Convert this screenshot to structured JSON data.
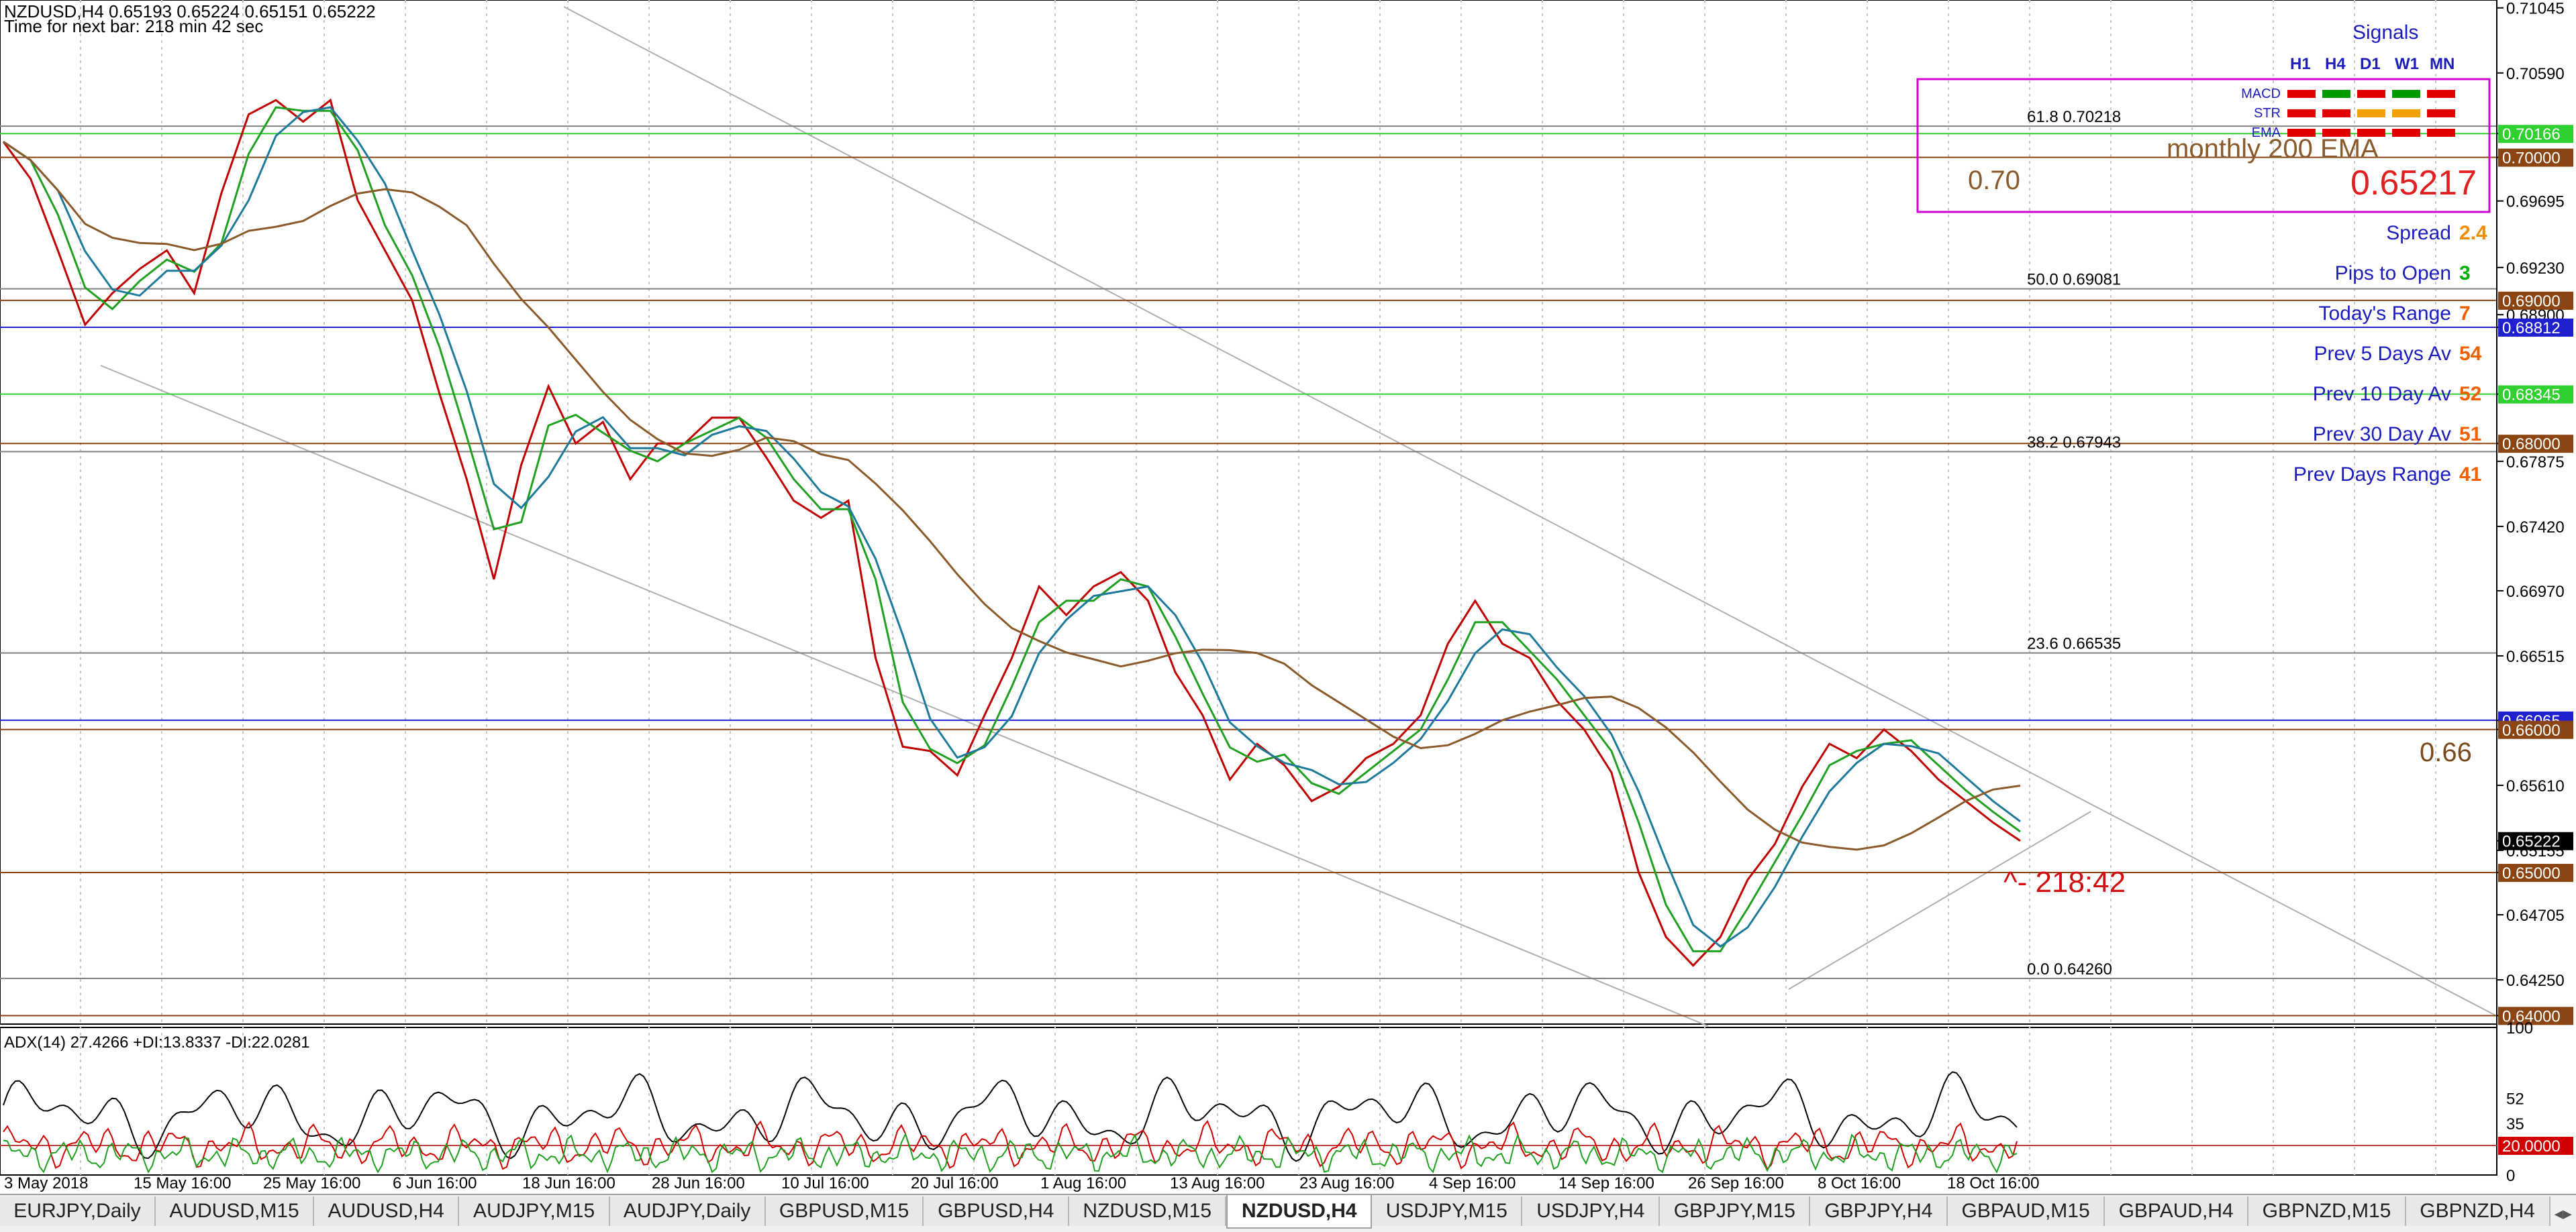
{
  "header": {
    "symbol_line": "NZDUSD,H4  0.65193 0.65224 0.65151 0.65222",
    "timer_line": "Time for next bar: 218 min 42 sec"
  },
  "signals": {
    "title": "Signals",
    "timeframes": [
      "H1",
      "H4",
      "D1",
      "W1",
      "MN"
    ],
    "rows": [
      {
        "label": "MACD",
        "colors": [
          "#e00000",
          "#009a00",
          "#e00000",
          "#009a00",
          "#e00000"
        ]
      },
      {
        "label": "STR",
        "colors": [
          "#e00000",
          "#e00000",
          "#f0a000",
          "#f0a000",
          "#e00000"
        ]
      },
      {
        "label": "EMA",
        "colors": [
          "#e00000",
          "#e00000",
          "#e00000",
          "#e00000",
          "#e00000"
        ]
      }
    ],
    "monthly_ema_label": "monthly 200 EMA",
    "level_label": "0.70",
    "current_price": "0.65217"
  },
  "info": [
    {
      "label": "Spread",
      "value": "2.4",
      "color": "#f08c00"
    },
    {
      "label": "Pips to Open",
      "value": "3",
      "color": "#00b000"
    },
    {
      "label": "Today's Range",
      "value": "7",
      "color": "#f06000"
    },
    {
      "label": "Prev 5 Days Av",
      "value": "54",
      "color": "#f06000"
    },
    {
      "label": "Prev 10 Day Av",
      "value": "52",
      "color": "#f06000"
    },
    {
      "label": "Prev 30 Day Av",
      "value": "51",
      "color": "#f06000"
    },
    {
      "label": "Prev Days Range",
      "value": "41",
      "color": "#f06000"
    }
  ],
  "chart_data": {
    "type": "line",
    "title": "",
    "price_axis": {
      "range": [
        0.6395,
        0.711
      ],
      "ticks": [
        "0.71045",
        "0.70590",
        "0.70166",
        "0.70000",
        "0.69695",
        "0.69230",
        "0.68900",
        "0.68812",
        "0.68345",
        "0.68000",
        "0.67875",
        "0.67420",
        "0.66970",
        "0.66515",
        "0.66065",
        "0.66000",
        "0.65610",
        "0.65222",
        "0.65155",
        "0.65000",
        "0.64705",
        "0.64250",
        "0.64000"
      ]
    },
    "time_labels": [
      "3 May 2018",
      "15 May 16:00",
      "25 May 16:00",
      "6 Jun 16:00",
      "18 Jun 16:00",
      "28 Jun 16:00",
      "10 Jul 16:00",
      "20 Jul 16:00",
      "1 Aug 16:00",
      "13 Aug 16:00",
      "23 Aug 16:00",
      "4 Sep 16:00",
      "14 Sep 16:00",
      "26 Sep 16:00",
      "8 Oct 16:00",
      "18 Oct 16:00"
    ],
    "price_series": [
      [
        0,
        0.7011
      ],
      [
        3,
        0.6985
      ],
      [
        6,
        0.6935
      ],
      [
        9,
        0.6883
      ],
      [
        12,
        0.6905
      ],
      [
        15,
        0.6922
      ],
      [
        18,
        0.6935
      ],
      [
        21,
        0.6905
      ],
      [
        24,
        0.6975
      ],
      [
        27,
        0.703
      ],
      [
        30,
        0.704
      ],
      [
        33,
        0.7025
      ],
      [
        36,
        0.704
      ],
      [
        39,
        0.697
      ],
      [
        42,
        0.6935
      ],
      [
        45,
        0.69
      ],
      [
        48,
        0.6835
      ],
      [
        51,
        0.6775
      ],
      [
        54,
        0.6705
      ],
      [
        57,
        0.6785
      ],
      [
        60,
        0.684
      ],
      [
        63,
        0.68
      ],
      [
        66,
        0.6815
      ],
      [
        69,
        0.6775
      ],
      [
        72,
        0.68
      ],
      [
        75,
        0.68
      ],
      [
        78,
        0.6818
      ],
      [
        81,
        0.6818
      ],
      [
        84,
        0.679
      ],
      [
        87,
        0.676
      ],
      [
        90,
        0.6748
      ],
      [
        93,
        0.676
      ],
      [
        96,
        0.665
      ],
      [
        99,
        0.6588
      ],
      [
        102,
        0.6585
      ],
      [
        105,
        0.6568
      ],
      [
        108,
        0.661
      ],
      [
        111,
        0.665
      ],
      [
        114,
        0.67
      ],
      [
        117,
        0.668
      ],
      [
        120,
        0.67
      ],
      [
        123,
        0.671
      ],
      [
        126,
        0.669
      ],
      [
        129,
        0.664
      ],
      [
        132,
        0.661
      ],
      [
        135,
        0.6565
      ],
      [
        138,
        0.659
      ],
      [
        141,
        0.6575
      ],
      [
        144,
        0.655
      ],
      [
        147,
        0.656
      ],
      [
        150,
        0.658
      ],
      [
        153,
        0.659
      ],
      [
        156,
        0.661
      ],
      [
        159,
        0.666
      ],
      [
        162,
        0.669
      ],
      [
        165,
        0.666
      ],
      [
        168,
        0.665
      ],
      [
        171,
        0.662
      ],
      [
        174,
        0.66
      ],
      [
        177,
        0.657
      ],
      [
        180,
        0.65
      ],
      [
        183,
        0.6455
      ],
      [
        186,
        0.6435
      ],
      [
        189,
        0.6455
      ],
      [
        192,
        0.6495
      ],
      [
        195,
        0.652
      ],
      [
        198,
        0.656
      ],
      [
        201,
        0.659
      ],
      [
        204,
        0.658
      ],
      [
        207,
        0.66
      ],
      [
        210,
        0.6585
      ],
      [
        213,
        0.6565
      ],
      [
        216,
        0.655
      ],
      [
        219,
        0.6535
      ],
      [
        222,
        0.65222
      ]
    ],
    "series": [
      {
        "name": "",
        "color": "#1e7a9a"
      },
      {
        "name": "",
        "color": "#8b5a2b"
      }
    ],
    "horizontal_levels": [
      {
        "price": 0.70166,
        "color": "#30d030",
        "label": "0.70166"
      },
      {
        "price": 0.7,
        "color": "#8b4513",
        "label": "0.70000"
      },
      {
        "price": 0.69,
        "color": "#8b4513",
        "label": "0.69000"
      },
      {
        "price": 0.68812,
        "color": "#2020d0",
        "label": "0.68812"
      },
      {
        "price": 0.68345,
        "color": "#30d030",
        "label": "0.68345"
      },
      {
        "price": 0.68,
        "color": "#8b4513",
        "label": "0.68000"
      },
      {
        "price": 0.66065,
        "color": "#2020d0",
        "label": "0.66065"
      },
      {
        "price": 0.66,
        "color": "#8b4513",
        "label": "0.66000"
      },
      {
        "price": 0.65,
        "color": "#8b4513",
        "label": "0.65000"
      },
      {
        "price": 0.64,
        "color": "#8b4513",
        "label": "0.64000"
      }
    ],
    "current_price_box": {
      "price": 0.65222,
      "label": "0.65222"
    },
    "fibonacci": [
      {
        "price": 0.70218,
        "label": "61.8  0.70218"
      },
      {
        "price": 0.69081,
        "label": "50.0  0.69081"
      },
      {
        "price": 0.67943,
        "label": "38.2  0.67943"
      },
      {
        "price": 0.66535,
        "label": "23.6  0.66535"
      },
      {
        "price": 0.6426,
        "label": "0.0  0.64260"
      }
    ],
    "annotations": {
      "level_66": "0.66",
      "countdown": "^- 218:42"
    },
    "indicator": {
      "label": "ADX(14) 27.4266 +DI:13.8337 -DI:22.0281",
      "axis_ticks": [
        "100",
        "52",
        "35",
        "0"
      ],
      "level": {
        "value": 20,
        "label": "20.0000"
      }
    }
  },
  "tabs": [
    {
      "label": "EURJPY,Daily"
    },
    {
      "label": "AUDUSD,M15"
    },
    {
      "label": "AUDUSD,H4"
    },
    {
      "label": "AUDJPY,M15"
    },
    {
      "label": "AUDJPY,Daily"
    },
    {
      "label": "GBPUSD,M15"
    },
    {
      "label": "GBPUSD,H4"
    },
    {
      "label": "NZDUSD,M15"
    },
    {
      "label": "NZDUSD,H4",
      "active": true
    },
    {
      "label": "USDJPY,M15"
    },
    {
      "label": "USDJPY,H4"
    },
    {
      "label": "GBPJPY,M15"
    },
    {
      "label": "GBPJPY,H4"
    },
    {
      "label": "GBPAUD,M15"
    },
    {
      "label": "GBPAUD,H4"
    },
    {
      "label": "GBPNZD,M15"
    },
    {
      "label": "GBPNZD,H4"
    }
  ]
}
